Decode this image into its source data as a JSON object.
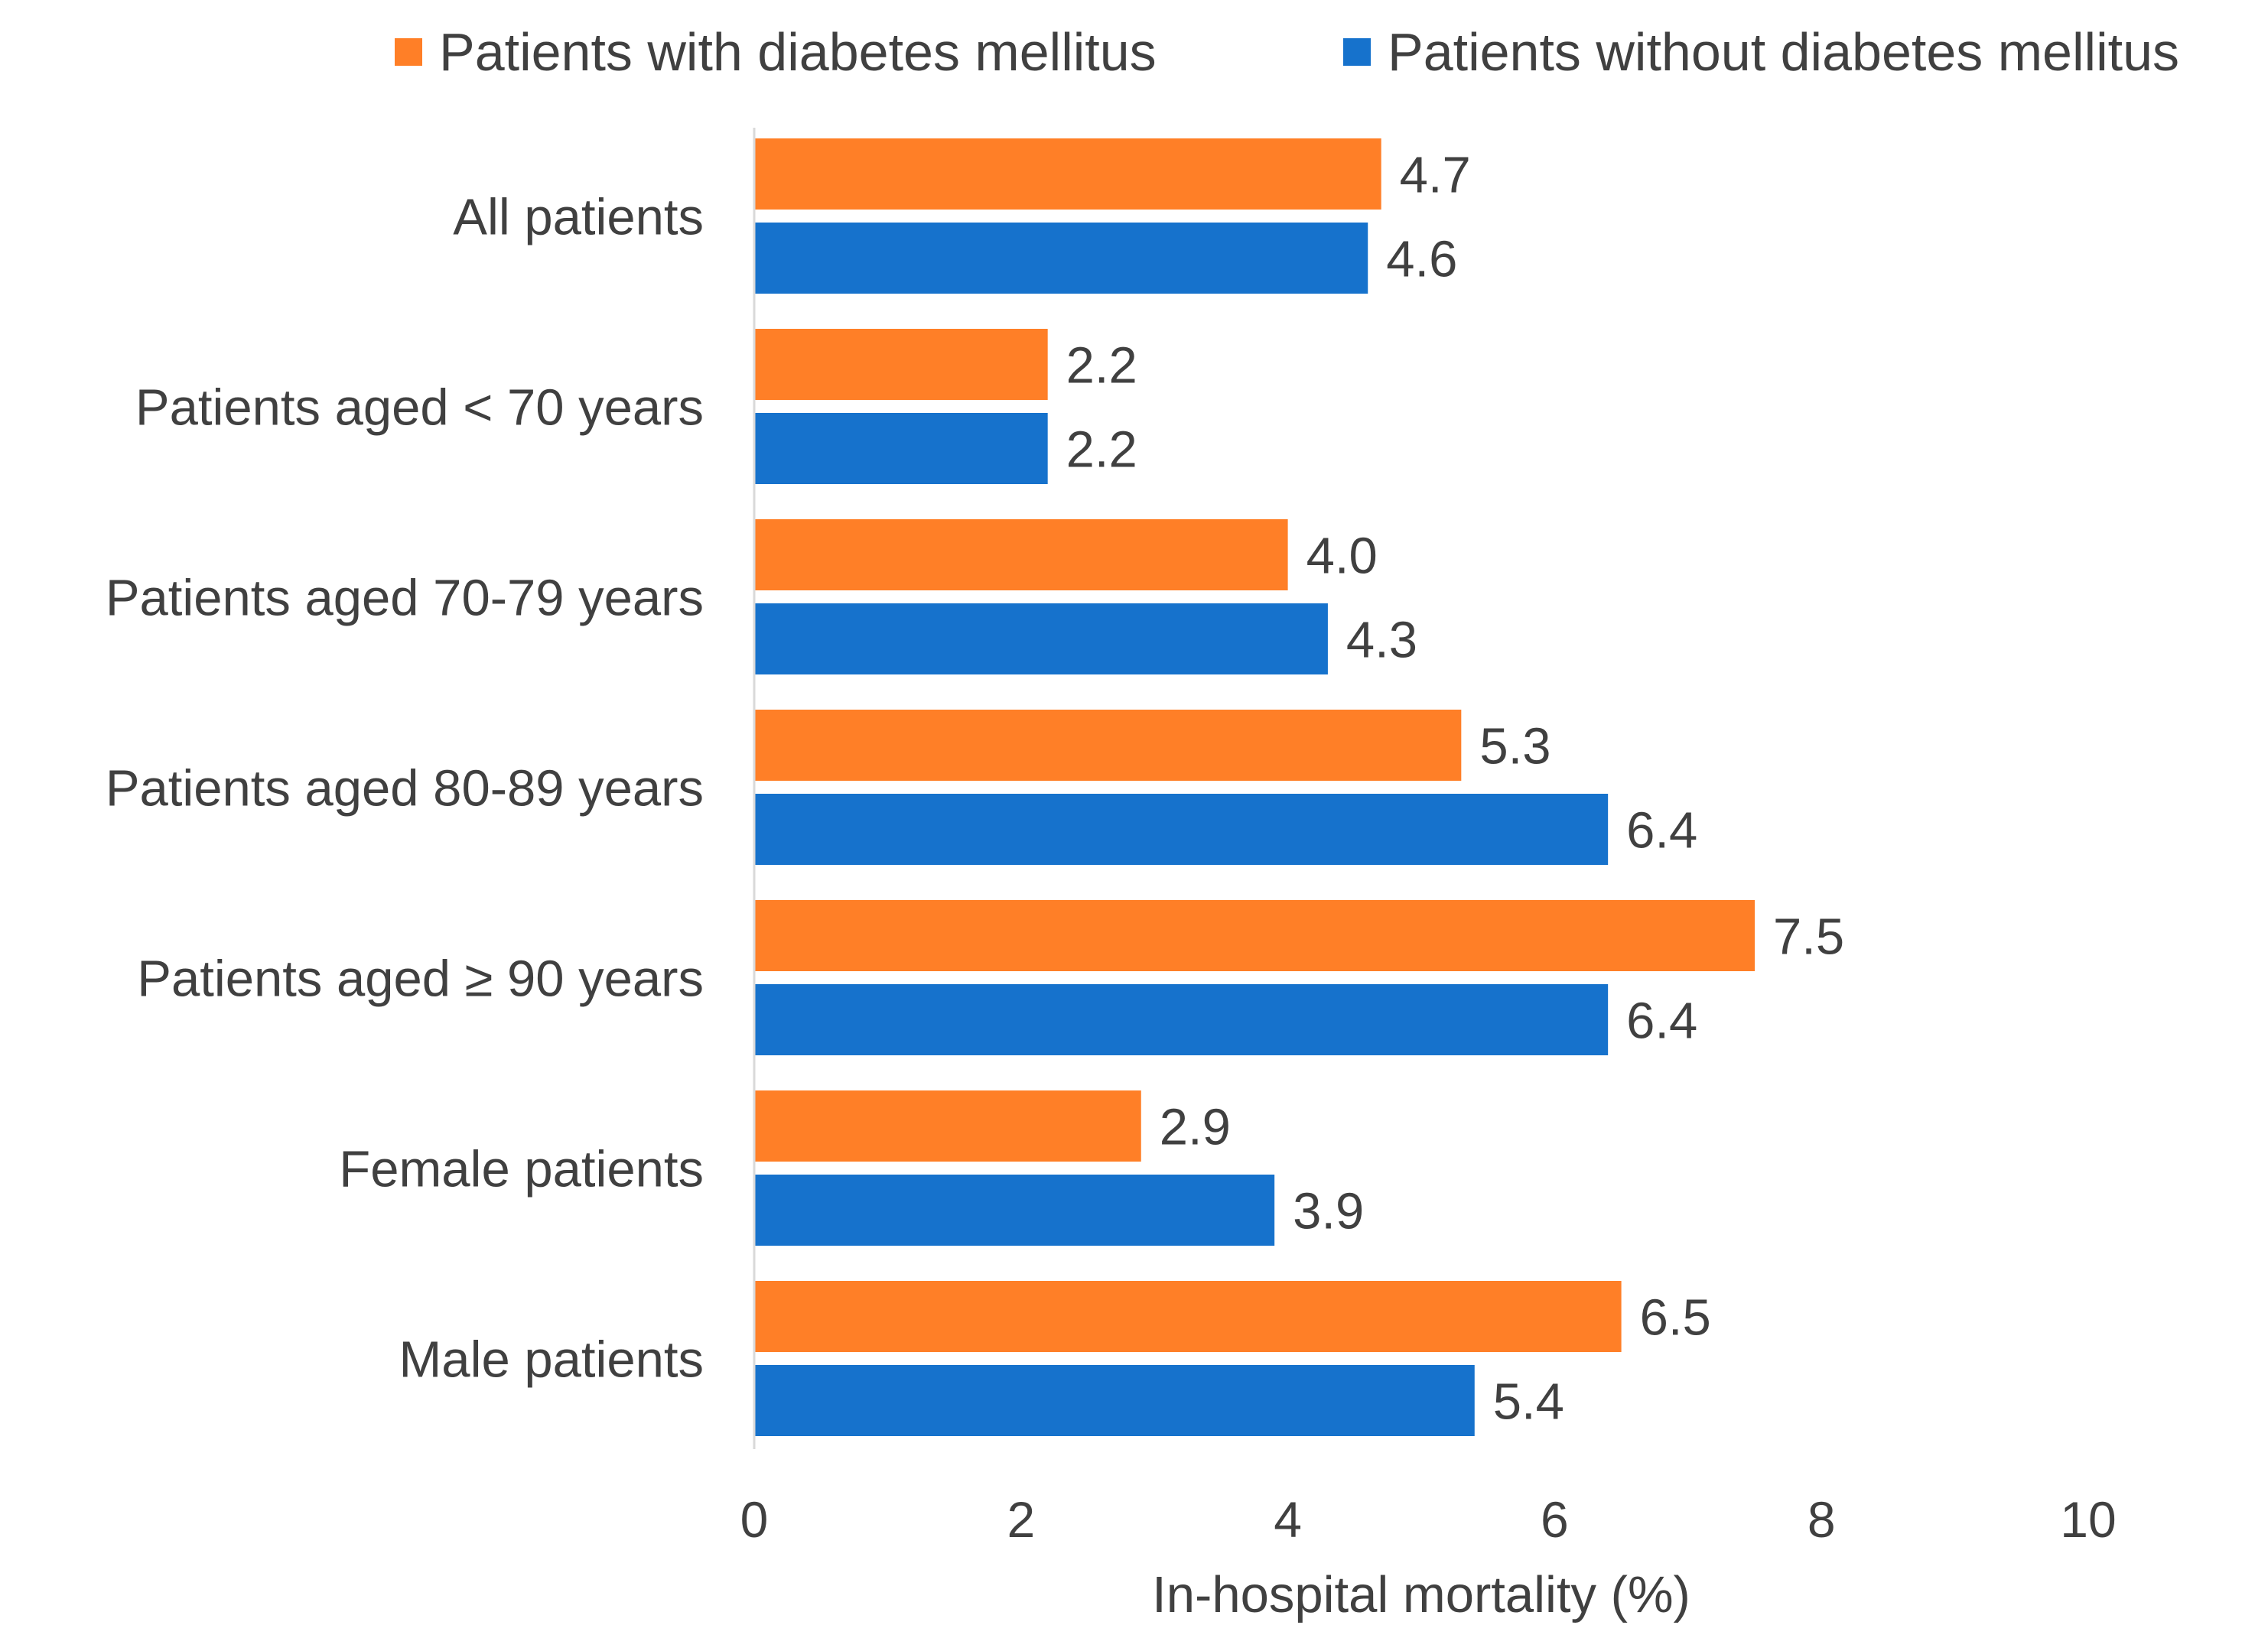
{
  "chart_data": {
    "type": "bar",
    "orientation": "horizontal",
    "title": "",
    "xlabel": "In-hospital mortality (%)",
    "ylabel": "",
    "xlim": [
      0,
      10
    ],
    "xticks": [
      "0",
      "2",
      "4",
      "6",
      "8",
      "10"
    ],
    "grid": false,
    "legend_position": "top",
    "categories": [
      "All patients",
      "Patients aged < 70 years",
      "Patients aged 70-79 years",
      "Patients aged 80-89 years",
      "Patients aged ≥ 90 years",
      "Female patients",
      "Male patients"
    ],
    "series": [
      {
        "name": "Patients with diabetes mellitus",
        "color": "#FF7F27",
        "values": [
          4.7,
          2.2,
          4.0,
          5.3,
          7.5,
          2.9,
          6.5
        ],
        "labels": [
          "4.7",
          "2.2",
          "4.0",
          "5.3",
          "7.5",
          "2.9",
          "6.5"
        ]
      },
      {
        "name": "Patients without diabetes mellitus",
        "color": "#1672CC",
        "values": [
          4.6,
          2.2,
          4.3,
          6.4,
          6.4,
          3.9,
          5.4
        ],
        "labels": [
          "4.6",
          "2.2",
          "4.3",
          "6.4",
          "6.4",
          "3.9",
          "5.4"
        ]
      }
    ]
  }
}
